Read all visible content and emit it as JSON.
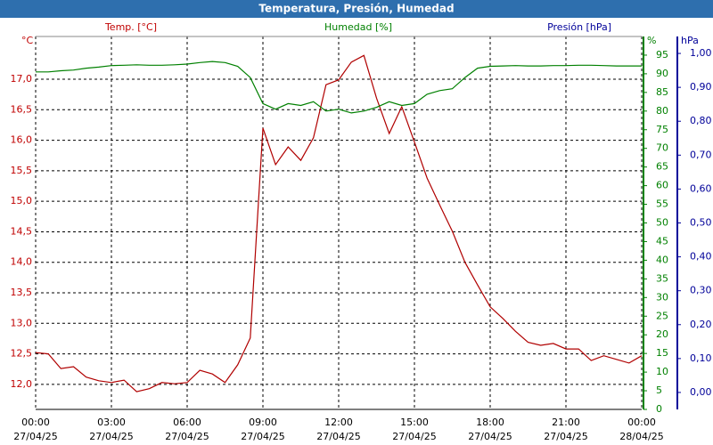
{
  "chart_data": {
    "type": "line",
    "title": "Temperatura, Presión, Humedad",
    "y_unit": "°C",
    "y_label": "Temp. [°C]",
    "y2_unit": "%",
    "y2_label": "Humedad [%]",
    "y3_unit": "hPa",
    "y3_label": "Presión [hPa]",
    "x": [
      0,
      0.5,
      1,
      1.5,
      2,
      2.5,
      3,
      3.5,
      4,
      4.5,
      5,
      5.5,
      6,
      6.5,
      7,
      7.5,
      8,
      8.5,
      9,
      9.5,
      10,
      10.5,
      11,
      11.5,
      12,
      12.5,
      13,
      13.5,
      14,
      14.5,
      15,
      15.5,
      16,
      16.5,
      17,
      17.5,
      18,
      18.5,
      19,
      19.5,
      20,
      20.5,
      21,
      21.5,
      22,
      22.5,
      23,
      23.5,
      24
    ],
    "xlim": [
      0,
      24
    ],
    "xticks": [
      {
        "value": 0,
        "label": "00:00"
      },
      {
        "value": 3,
        "label": "03:00"
      },
      {
        "value": 6,
        "label": "06:00"
      },
      {
        "value": 9,
        "label": "09:00"
      },
      {
        "value": 12,
        "label": "12:00"
      },
      {
        "value": 15,
        "label": "15:00"
      },
      {
        "value": 18,
        "label": "18:00"
      },
      {
        "value": 21,
        "label": "21:00"
      },
      {
        "value": 24,
        "label": "00:00"
      }
    ],
    "xtick_dates": [
      "27/04/25",
      "27/04/25",
      "27/04/25",
      "27/04/25",
      "27/04/25",
      "27/04/25",
      "27/04/25",
      "27/04/25",
      "28/04/25"
    ],
    "ylim": [
      11.59,
      17.7
    ],
    "yticks": [
      {
        "value": 12,
        "label": "12,0"
      },
      {
        "value": 12.5,
        "label": "12,5"
      },
      {
        "value": 13,
        "label": "13,0"
      },
      {
        "value": 13.5,
        "label": "13,5"
      },
      {
        "value": 14,
        "label": "14,0"
      },
      {
        "value": 14.5,
        "label": "14,5"
      },
      {
        "value": 15,
        "label": "15,0"
      },
      {
        "value": 15.5,
        "label": "15,5"
      },
      {
        "value": 16,
        "label": "16,0"
      },
      {
        "value": 16.5,
        "label": "16,5"
      },
      {
        "value": 17,
        "label": "17,0"
      }
    ],
    "y2lim": [
      0,
      100
    ],
    "y2ticks": [
      0,
      5,
      10,
      15,
      20,
      25,
      30,
      35,
      40,
      45,
      50,
      55,
      60,
      65,
      70,
      75,
      80,
      85,
      90,
      95
    ],
    "y3lim": [
      -0.05,
      1.05
    ],
    "y3ticks": [
      {
        "value": 0,
        "label": "0,00"
      },
      {
        "value": 0.1,
        "label": "0,10"
      },
      {
        "value": 0.2,
        "label": "0,20"
      },
      {
        "value": 0.3,
        "label": "0,30"
      },
      {
        "value": 0.4,
        "label": "0,40"
      },
      {
        "value": 0.5,
        "label": "0,50"
      },
      {
        "value": 0.6,
        "label": "0,60"
      },
      {
        "value": 0.7,
        "label": "0,70"
      },
      {
        "value": 0.8,
        "label": "0,80"
      },
      {
        "value": 0.9,
        "label": "0,90"
      },
      {
        "value": 1,
        "label": "1,00"
      }
    ],
    "y_color": "#c00000",
    "y2_color": "#008000",
    "y3_color": "#000099",
    "grid": true,
    "series": [
      {
        "name": "Temperatura",
        "color": "#b00000",
        "axis": "y",
        "values": [
          12.52,
          12.5,
          12.26,
          12.29,
          12.12,
          12.06,
          12.03,
          12.07,
          11.88,
          11.93,
          12.03,
          12.01,
          12.03,
          12.23,
          12.17,
          12.03,
          12.32,
          12.76,
          16.2,
          15.6,
          15.89,
          15.67,
          16.04,
          16.91,
          16.99,
          17.28,
          17.39,
          16.69,
          16.11,
          16.55,
          15.97,
          15.38,
          14.94,
          14.51,
          14.0,
          13.63,
          13.27,
          13.08,
          12.87,
          12.69,
          12.64,
          12.67,
          12.58,
          12.58,
          12.39,
          12.47,
          12.41,
          12.35,
          12.47
        ]
      },
      {
        "name": "Humedad",
        "color": "#008000",
        "axis": "y2",
        "values": [
          90.5,
          90.5,
          90.8,
          91,
          91.5,
          91.8,
          92.2,
          92.3,
          92.4,
          92.3,
          92.3,
          92.4,
          92.6,
          93,
          93.3,
          93,
          92,
          89,
          82,
          80.5,
          82,
          81.5,
          82.5,
          80,
          80.5,
          79.5,
          80,
          81,
          82.5,
          81.5,
          82,
          84.5,
          85.5,
          86,
          89,
          91.5,
          92,
          92.1,
          92.2,
          92.1,
          92.1,
          92.2,
          92.2,
          92.3,
          92.3,
          92.2,
          92.1,
          92.1,
          92.1
        ]
      }
    ]
  }
}
